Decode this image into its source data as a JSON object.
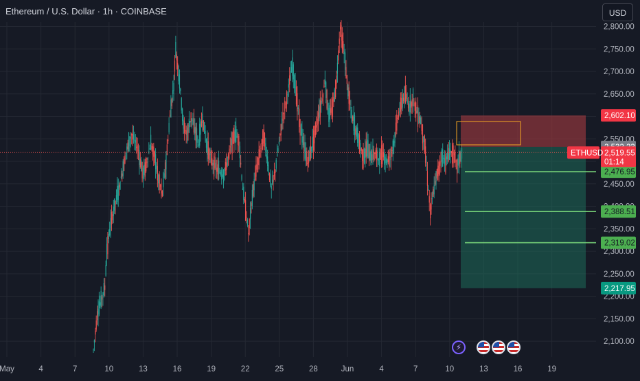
{
  "header": {
    "title": "Ethereum / U.S. Dollar · 1h · COINBASE",
    "currency_button": "USD"
  },
  "chart_data": {
    "type": "candlestick",
    "symbol": "ETHUSD",
    "y_ticks": [
      "2,100.00",
      "2,150.00",
      "2,200.00",
      "2,250.00",
      "2,300.00",
      "2,350.00",
      "2,400.00",
      "2,450.00",
      "2,500.00",
      "2,550.00",
      "2,600.00",
      "2,650.00",
      "2,700.00",
      "2,750.00",
      "2,800.00"
    ],
    "x_ticks": [
      "May",
      "4",
      "7",
      "10",
      "13",
      "16",
      "19",
      "22",
      "25",
      "28",
      "Jun",
      "4",
      "7",
      "10",
      "13",
      "16",
      "19"
    ],
    "ylim": [
      2065,
      2810
    ],
    "current_price": {
      "label": "ETHUSD",
      "value": "2,519.55",
      "countdown": "01:14"
    },
    "position_levels": {
      "stop": "2,602.10",
      "entry": "2,532.23",
      "take_profits": [
        "2,476.95",
        "2,388.51",
        "2,319.02"
      ],
      "target": "2,217.95"
    },
    "path": [
      [
        0,
        2080
      ],
      [
        4,
        2160
      ],
      [
        8,
        2190
      ],
      [
        12,
        2220
      ],
      [
        14,
        2300
      ],
      [
        18,
        2360
      ],
      [
        22,
        2400
      ],
      [
        28,
        2450
      ],
      [
        34,
        2520
      ],
      [
        40,
        2560
      ],
      [
        46,
        2530
      ],
      [
        52,
        2470
      ],
      [
        56,
        2500
      ],
      [
        60,
        2540
      ],
      [
        64,
        2510
      ],
      [
        68,
        2460
      ],
      [
        72,
        2430
      ],
      [
        76,
        2500
      ],
      [
        80,
        2600
      ],
      [
        84,
        2670
      ],
      [
        86,
        2750
      ],
      [
        90,
        2680
      ],
      [
        94,
        2580
      ],
      [
        98,
        2560
      ],
      [
        102,
        2600
      ],
      [
        106,
        2570
      ],
      [
        110,
        2540
      ],
      [
        114,
        2600
      ],
      [
        118,
        2540
      ],
      [
        124,
        2500
      ],
      [
        130,
        2480
      ],
      [
        136,
        2470
      ],
      [
        140,
        2500
      ],
      [
        144,
        2540
      ],
      [
        148,
        2560
      ],
      [
        152,
        2550
      ],
      [
        156,
        2440
      ],
      [
        160,
        2380
      ],
      [
        162,
        2340
      ],
      [
        166,
        2420
      ],
      [
        170,
        2480
      ],
      [
        174,
        2520
      ],
      [
        178,
        2560
      ],
      [
        182,
        2500
      ],
      [
        186,
        2440
      ],
      [
        190,
        2480
      ],
      [
        194,
        2540
      ],
      [
        198,
        2600
      ],
      [
        202,
        2640
      ],
      [
        206,
        2690
      ],
      [
        208,
        2710
      ],
      [
        212,
        2650
      ],
      [
        216,
        2580
      ],
      [
        220,
        2530
      ],
      [
        224,
        2500
      ],
      [
        228,
        2530
      ],
      [
        232,
        2570
      ],
      [
        236,
        2610
      ],
      [
        240,
        2650
      ],
      [
        242,
        2680
      ],
      [
        246,
        2600
      ],
      [
        250,
        2620
      ],
      [
        254,
        2680
      ],
      [
        256,
        2740
      ],
      [
        258,
        2800
      ],
      [
        262,
        2740
      ],
      [
        266,
        2660
      ],
      [
        270,
        2600
      ],
      [
        274,
        2570
      ],
      [
        278,
        2540
      ],
      [
        282,
        2510
      ],
      [
        286,
        2530
      ],
      [
        290,
        2510
      ],
      [
        294,
        2520
      ],
      [
        298,
        2505
      ],
      [
        302,
        2520
      ],
      [
        306,
        2500
      ],
      [
        310,
        2510
      ],
      [
        314,
        2540
      ],
      [
        318,
        2600
      ],
      [
        322,
        2630
      ],
      [
        326,
        2650
      ],
      [
        330,
        2620
      ],
      [
        334,
        2640
      ],
      [
        338,
        2610
      ],
      [
        342,
        2590
      ],
      [
        346,
        2540
      ],
      [
        350,
        2440
      ],
      [
        352,
        2390
      ],
      [
        356,
        2440
      ],
      [
        360,
        2480
      ],
      [
        364,
        2510
      ],
      [
        368,
        2500
      ],
      [
        372,
        2520
      ],
      [
        376,
        2520
      ],
      [
        380,
        2490
      ],
      [
        383,
        2510
      ],
      [
        386,
        2519.55
      ]
    ]
  },
  "colors": {
    "up": "#26a69a",
    "down": "#ef5350",
    "stop_zone": "#a03a3f",
    "target_zone": "#1e6b5a",
    "tp_line": "#7bd87b",
    "grid": "#242833"
  },
  "events": [
    "lightning-event-icon",
    "us-flag-icon",
    "us-flag-icon",
    "us-flag-icon"
  ]
}
